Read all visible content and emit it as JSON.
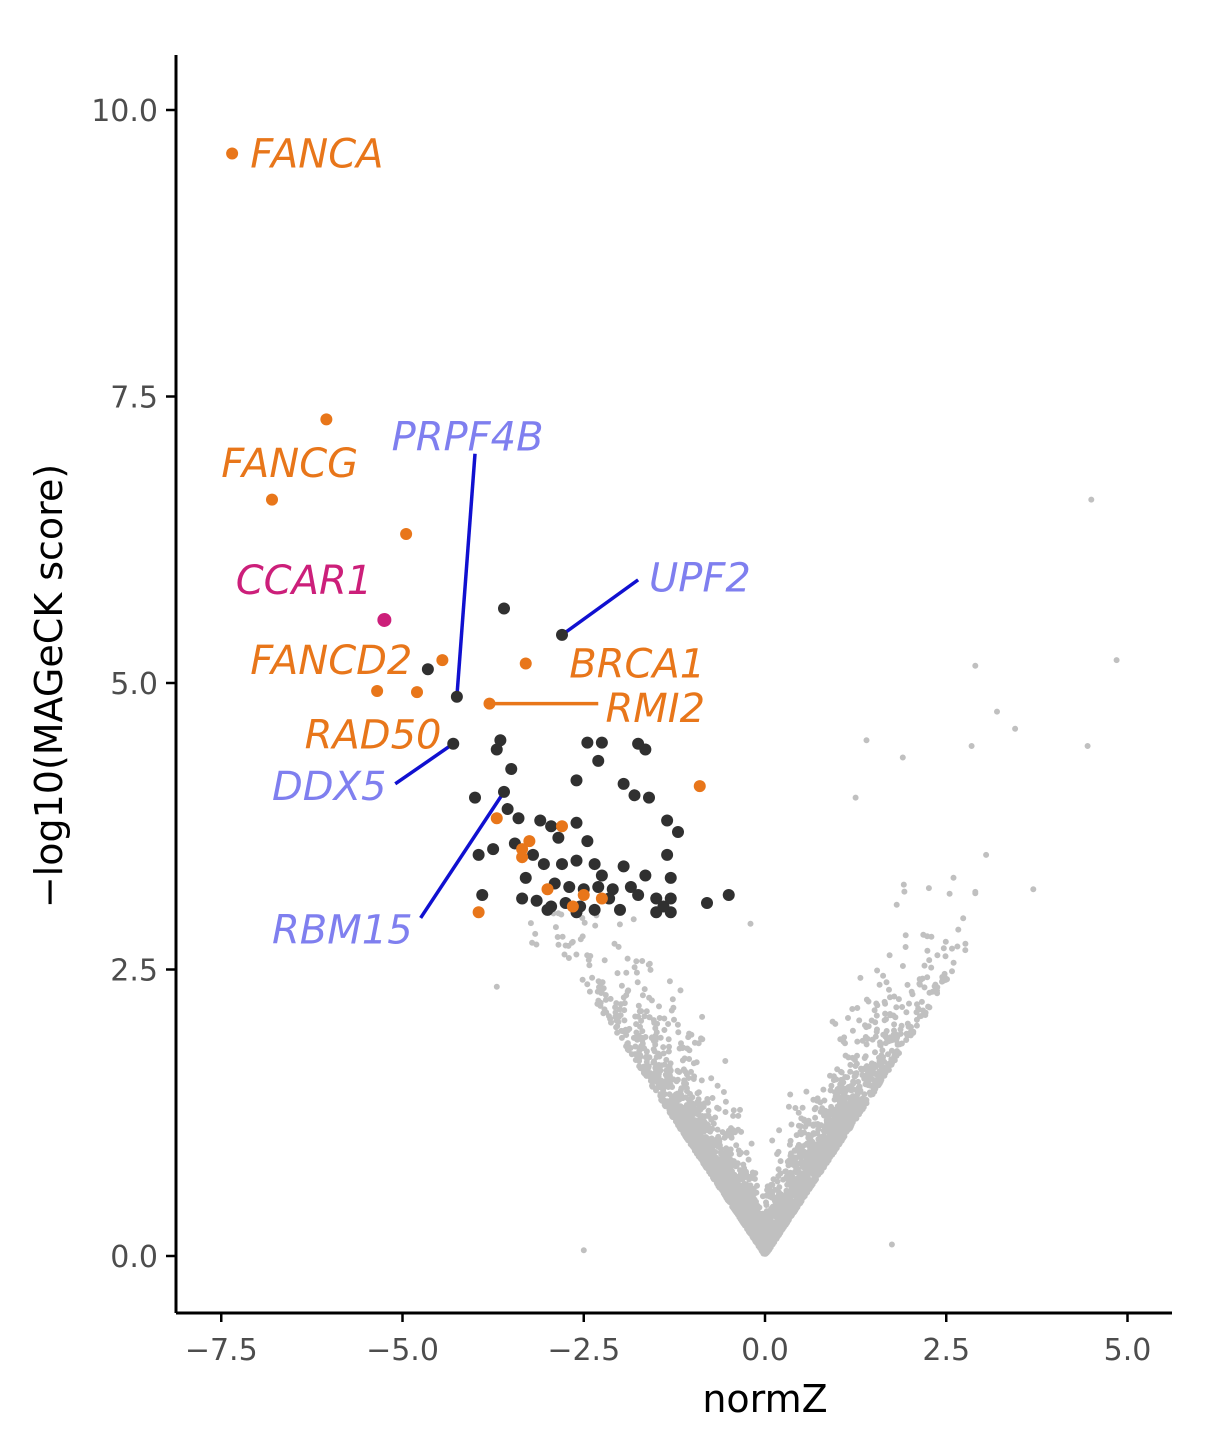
{
  "chart_data": {
    "type": "scatter",
    "xlabel": "normZ",
    "ylabel": "−log10(MAGeCK score)",
    "xlim": [
      -8.0,
      5.6
    ],
    "ylim": [
      -0.5,
      10.5
    ],
    "x_ticks": [
      -7.5,
      -5.0,
      -2.5,
      0.0,
      2.5,
      5.0
    ],
    "x_tick_labels": [
      "−7.5",
      "−5.0",
      "−2.5",
      "0.0",
      "2.5",
      "5.0"
    ],
    "y_ticks": [
      0.0,
      2.5,
      5.0,
      7.5,
      10.0
    ],
    "y_tick_labels": [
      "0.0",
      "2.5",
      "5.0",
      "7.5",
      "10.0"
    ],
    "grid": false,
    "colors": {
      "background": "#c0c0c0",
      "hit": "#303030",
      "fanconi": "#e8761a",
      "ccar1": "#cc1f7a",
      "rna_label": "#7f7fef",
      "rna_line": "#1010d0",
      "axis": "#000000"
    },
    "background_cloud": {
      "note_points": [
        [
          4.5,
          6.6
        ],
        [
          4.85,
          5.2
        ],
        [
          2.9,
          5.15
        ],
        [
          4.45,
          4.45
        ],
        [
          3.2,
          4.75
        ],
        [
          2.85,
          4.45
        ],
        [
          3.45,
          4.6
        ],
        [
          1.4,
          4.5
        ],
        [
          1.9,
          4.35
        ],
        [
          1.25,
          4.0
        ],
        [
          3.05,
          3.5
        ],
        [
          3.7,
          3.2
        ],
        [
          2.6,
          3.3
        ],
        [
          -0.2,
          2.9
        ],
        [
          -3.7,
          2.35
        ],
        [
          -2.5,
          0.05
        ],
        [
          1.75,
          0.1
        ]
      ]
    },
    "hits": [
      [
        -3.6,
        5.65
      ],
      [
        -4.65,
        5.12
      ],
      [
        -4.25,
        4.88
      ],
      [
        -3.65,
        4.5
      ],
      [
        -3.7,
        4.42
      ],
      [
        -3.5,
        4.25
      ],
      [
        -2.45,
        4.48
      ],
      [
        -2.25,
        4.48
      ],
      [
        -2.3,
        4.32
      ],
      [
        -1.65,
        4.42
      ],
      [
        -1.75,
        4.47
      ],
      [
        -2.6,
        4.15
      ],
      [
        -1.95,
        4.12
      ],
      [
        -1.8,
        4.02
      ],
      [
        -1.6,
        4.0
      ],
      [
        -4.0,
        4.0
      ],
      [
        -3.55,
        3.9
      ],
      [
        -3.4,
        3.82
      ],
      [
        -2.95,
        3.75
      ],
      [
        -2.6,
        3.78
      ],
      [
        -1.35,
        3.8
      ],
      [
        -1.2,
        3.7
      ],
      [
        -3.1,
        3.8
      ],
      [
        -2.85,
        3.65
      ],
      [
        -2.45,
        3.62
      ],
      [
        -1.35,
        3.5
      ],
      [
        -2.35,
        3.42
      ],
      [
        -3.95,
        3.5
      ],
      [
        -3.75,
        3.55
      ],
      [
        -3.2,
        3.5
      ],
      [
        -3.05,
        3.42
      ],
      [
        -2.8,
        3.42
      ],
      [
        -2.6,
        3.45
      ],
      [
        -2.25,
        3.32
      ],
      [
        -1.95,
        3.4
      ],
      [
        -1.65,
        3.32
      ],
      [
        -1.3,
        3.3
      ],
      [
        -3.3,
        3.3
      ],
      [
        -2.9,
        3.25
      ],
      [
        -2.7,
        3.22
      ],
      [
        -2.5,
        3.2
      ],
      [
        -2.3,
        3.22
      ],
      [
        -2.1,
        3.2
      ],
      [
        -1.85,
        3.22
      ],
      [
        -1.3,
        3.12
      ],
      [
        -3.9,
        3.15
      ],
      [
        -3.35,
        3.12
      ],
      [
        -3.15,
        3.1
      ],
      [
        -2.95,
        3.05
      ],
      [
        -2.75,
        3.08
      ],
      [
        -2.55,
        3.05
      ],
      [
        -2.35,
        3.02
      ],
      [
        -2.0,
        3.02
      ],
      [
        -1.75,
        3.15
      ],
      [
        -1.5,
        3.12
      ],
      [
        -1.4,
        3.05
      ],
      [
        -1.3,
        3.0
      ],
      [
        -0.8,
        3.08
      ],
      [
        -0.5,
        3.15
      ],
      [
        -2.8,
        5.42
      ],
      [
        -4.3,
        4.47
      ],
      [
        -3.6,
        4.05
      ],
      [
        -3.0,
        3.02
      ],
      [
        -2.6,
        3.0
      ],
      [
        -1.5,
        3.0
      ],
      [
        -3.45,
        3.6
      ],
      [
        -2.15,
        3.12
      ]
    ],
    "fanconi_points": [
      [
        -7.35,
        9.62
      ],
      [
        -6.05,
        7.3
      ],
      [
        -6.8,
        6.6
      ],
      [
        -4.95,
        6.3
      ],
      [
        -4.45,
        5.2
      ],
      [
        -3.3,
        5.17
      ],
      [
        -5.35,
        4.93
      ],
      [
        -4.8,
        4.92
      ],
      [
        -3.8,
        4.82
      ],
      [
        -0.9,
        4.1
      ],
      [
        -3.7,
        3.82
      ],
      [
        -2.8,
        3.75
      ],
      [
        -3.25,
        3.62
      ],
      [
        -3.35,
        3.55
      ],
      [
        -3.35,
        3.48
      ],
      [
        -3.0,
        3.2
      ],
      [
        -2.5,
        3.15
      ],
      [
        -2.65,
        3.05
      ],
      [
        -2.25,
        3.12
      ],
      [
        -3.95,
        3.0
      ]
    ],
    "ccar1_points": [
      [
        -5.25,
        5.55
      ]
    ],
    "labels": [
      {
        "text": "FANCA",
        "group": "fanconi",
        "lx": -7.1,
        "ly": 9.62,
        "anchor": "start"
      },
      {
        "text": "FANCG",
        "group": "fanconi",
        "lx": -7.5,
        "ly": 6.92,
        "anchor": "start"
      },
      {
        "text": "PRPF4B",
        "group": "rna",
        "lx": -5.15,
        "ly": 7.15,
        "anchor": "start",
        "px": -4.25,
        "py": 4.88,
        "ex": -4.0,
        "ey": 7.0
      },
      {
        "text": "CCAR1",
        "group": "ccar1",
        "lx": -7.3,
        "ly": 5.9,
        "anchor": "start"
      },
      {
        "text": "UPF2",
        "group": "rna",
        "lx": -1.6,
        "ly": 5.92,
        "anchor": "start",
        "px": -2.8,
        "py": 5.42,
        "ex": -1.75,
        "ey": 5.9
      },
      {
        "text": "FANCD2",
        "group": "fanconi",
        "lx": -7.1,
        "ly": 5.2,
        "anchor": "start"
      },
      {
        "text": "BRCA1",
        "group": "fanconi",
        "lx": -2.7,
        "ly": 5.17,
        "anchor": "start"
      },
      {
        "text": "RMI2",
        "group": "fanconi",
        "lx": -2.2,
        "ly": 4.78,
        "anchor": "start",
        "px": -3.8,
        "py": 4.82,
        "ex": -2.3,
        "ey": 4.82
      },
      {
        "text": "RAD50",
        "group": "fanconi",
        "lx": -6.35,
        "ly": 4.55,
        "anchor": "start"
      },
      {
        "text": "DDX5",
        "group": "rna",
        "lx": -6.8,
        "ly": 4.1,
        "anchor": "start",
        "px": -4.3,
        "py": 4.47,
        "ex": -5.1,
        "ey": 4.12
      },
      {
        "text": "RBM15",
        "group": "rna",
        "lx": -6.8,
        "ly": 2.85,
        "anchor": "start",
        "px": -3.6,
        "py": 4.05,
        "ex": -4.75,
        "ey": 2.95
      }
    ]
  }
}
